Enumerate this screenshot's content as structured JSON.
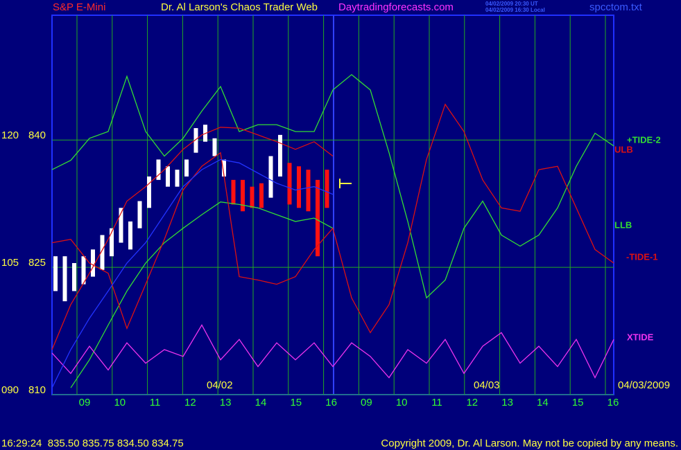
{
  "header": {
    "symbol": "S&P E-Mini",
    "title": "Dr. Al Larson's Chaos Trader Web",
    "site": "Daytradingforecasts.com",
    "time_ut": "04/02/2009 20:30 UT",
    "time_local": "04/02/2009 16:30 Local",
    "file": "spcctom.txt"
  },
  "chart_data": {
    "type": "line",
    "hour_labels": [
      "09",
      "10",
      "11",
      "12",
      "13",
      "14",
      "15",
      "16",
      "09",
      "10",
      "11",
      "12",
      "13",
      "14",
      "15",
      "16"
    ],
    "day_labels": [
      "04/02",
      "04/03",
      "04/03/2009"
    ],
    "ylim": [
      810,
      854.7
    ],
    "yticks": [
      810,
      825,
      840
    ],
    "y2lim": [
      90,
      134.7
    ],
    "y2ticks": [
      {
        "value": 90,
        "label": "090"
      },
      105,
      120
    ],
    "grid": true,
    "series": [
      {
        "name": "+TIDE-2",
        "color": "#33dd33",
        "values": [
          836.5,
          837.6,
          840.2,
          841.0,
          847.5,
          841.0,
          838.1,
          840.2,
          843.4,
          846.3,
          841.0,
          841.8,
          841.8,
          841.0,
          841.0,
          845.9,
          847.7,
          845.9,
          838.5,
          830.4,
          821.4,
          823.5,
          829.6,
          832.8,
          828.8,
          827.5,
          828.8,
          832.0,
          836.9,
          840.8,
          839.3
        ]
      },
      {
        "name": "ULB",
        "color": "#dd1111",
        "values": [
          815.3,
          820.6,
          824.3,
          828.3,
          832.8,
          834.5,
          836.5,
          838.9,
          840.6,
          841.5,
          841.4,
          840.6,
          839.8,
          838.9,
          839.8,
          838.1,
          null,
          null,
          null,
          null,
          null,
          null,
          null,
          null,
          null,
          null,
          null,
          null,
          null,
          null,
          null
        ]
      },
      {
        "name": "LLB",
        "color": "#33dd33",
        "values": [
          null,
          810.8,
          814.1,
          818.2,
          822.2,
          825.5,
          827.9,
          829.6,
          831.2,
          832.7,
          832.4,
          832.0,
          831.2,
          830.4,
          830.8,
          829.6,
          null,
          null,
          null,
          null,
          null,
          null,
          null,
          null,
          null,
          null,
          null,
          null,
          null,
          null,
          null
        ]
      },
      {
        "name": "-TIDE-1",
        "color": "#dd1111",
        "values": [
          827.9,
          828.3,
          825.5,
          824.3,
          817.8,
          823.0,
          828.3,
          834.1,
          836.9,
          838.5,
          823.9,
          823.5,
          823.0,
          823.9,
          827.1,
          829.6,
          821.4,
          817.3,
          820.6,
          827.9,
          837.7,
          844.2,
          841.0,
          835.3,
          832.0,
          831.6,
          836.5,
          836.9,
          832.0,
          827.1,
          825.5
        ]
      },
      {
        "name": "XTIDE",
        "color": "#ee33ee",
        "values": [
          814.9,
          812.5,
          815.7,
          812.9,
          816.1,
          813.7,
          815.3,
          814.5,
          818.2,
          814.1,
          816.5,
          813.3,
          816.1,
          814.1,
          816.1,
          813.3,
          816.1,
          814.5,
          812.0,
          815.3,
          813.7,
          816.5,
          812.5,
          815.7,
          817.3,
          813.7,
          815.7,
          813.3,
          816.5,
          812.0,
          816.5
        ]
      },
      {
        "color": "#2233ff",
        "values": [
          810.8,
          815.3,
          819.0,
          822.2,
          825.5,
          827.9,
          831.2,
          834.5,
          836.5,
          837.7,
          837.3,
          836.1,
          834.9,
          834.1,
          834.5,
          833.6,
          null,
          null,
          null,
          null,
          null,
          null,
          null,
          null,
          null,
          null,
          null,
          null,
          null,
          null,
          null
        ]
      }
    ],
    "bars": {
      "high": [
        826.3,
        826.3,
        825.5,
        826.3,
        827.1,
        828.8,
        829.6,
        832.0,
        830.4,
        832.8,
        835.7,
        837.7,
        836.9,
        836.5,
        837.7,
        841.4,
        841.8,
        840.2,
        837.7,
        835.3,
        835.3,
        834.5,
        834.9,
        838.1,
        840.6,
        837.3,
        836.9,
        836.5,
        835.3,
        836.5
      ],
      "low": [
        822.2,
        821.0,
        822.2,
        823.0,
        823.9,
        824.7,
        826.3,
        827.9,
        827.1,
        829.6,
        832.0,
        835.3,
        834.5,
        834.5,
        835.7,
        838.5,
        839.8,
        838.1,
        835.7,
        832.4,
        831.6,
        832.0,
        832.0,
        833.2,
        835.7,
        832.4,
        832.0,
        831.6,
        826.3,
        832.0
      ],
      "colors": [
        "#ffffff",
        "#ffffff",
        "#ffffff",
        "#ffffff",
        "#ffffff",
        "#ffffff",
        "#ffffff",
        "#ffffff",
        "#ffffff",
        "#ffffff",
        "#ffffff",
        "#ffffff",
        "#ffffff",
        "#ffffff",
        "#ffffff",
        "#ffffff",
        "#ffffff",
        "#ffffff",
        "#ffffff",
        "#ff1111",
        "#ff1111",
        "#ff1111",
        "#ff1111",
        "#ffffff",
        "#ffffff",
        "#ff1111",
        "#ff1111",
        "#ff1111",
        "#ff1111",
        "#ff1111"
      ]
    }
  },
  "footer": {
    "status": "16:29:24  835.50 835.75 834.50 834.75",
    "copyright": "Copyright 2009, Dr. Al Larson. May not be copied by any means."
  }
}
